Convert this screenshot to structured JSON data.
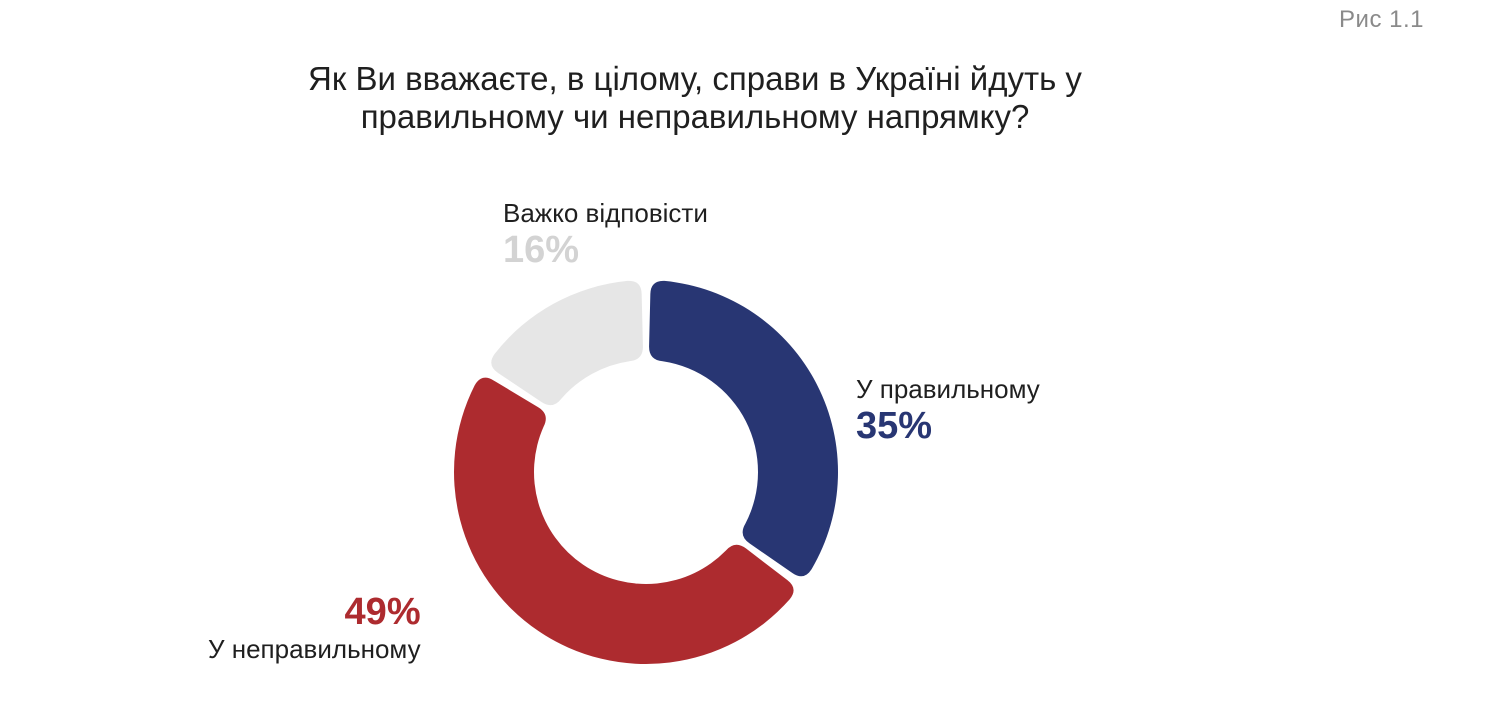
{
  "figure_label": "Рис 1.1",
  "chart_data": {
    "type": "pie",
    "title": "Як Ви вважаєте, в цілому, справи в Україні йдуть у правильному чи неправильному напрямку?",
    "title_lines": [
      "Як Ви вважаєте, в цілому, справи в Україні йдуть у",
      "правильному чи неправильному напрямку?"
    ],
    "style": "donut",
    "slices": [
      {
        "label": "У правильному",
        "value": 35,
        "value_label": "35%",
        "color": "#283673"
      },
      {
        "label": "У неправильному",
        "value": 49,
        "value_label": "49%",
        "color": "#ad2b2f"
      },
      {
        "label": "Важко відповісти",
        "value": 16,
        "value_label": "16%",
        "color": "#e6e6e6"
      }
    ],
    "label_colors": {
      "У правильному": "#283673",
      "У неправильному": "#ad2b2f",
      "Важко відповісти": "#d3d3d3"
    }
  }
}
